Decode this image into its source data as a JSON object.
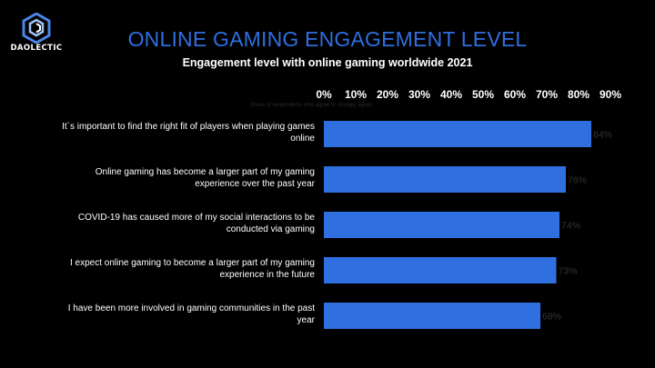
{
  "brand": {
    "name": "DAOLECTIC"
  },
  "header": {
    "title": "ONLINE GAMING ENGAGEMENT LEVEL",
    "subtitle": "Engagement level with online gaming worldwide 2021"
  },
  "colors": {
    "background": "#000000",
    "accent": "#2f6fe0",
    "bar": "#2f6fe0",
    "text": "#ffffff"
  },
  "chart_data": {
    "type": "bar",
    "orientation": "horizontal",
    "categories": [
      "It`s important to find the right fit of players when playing games online",
      "Online gaming has become a larger part of my gaming experience over the past year",
      "COVID-19 has caused more of my social interactions to be conducted via gaming",
      "I expect online gaming to become a larger part of my gaming experience in the future",
      "I have been more involved in gaming communities in the past year"
    ],
    "category_lines": [
      [
        "It`s important to find the right fit of players when playing games",
        "online"
      ],
      [
        "Online gaming has become a larger part of my gaming",
        "experience over the past year"
      ],
      [
        "COVID-19 has caused more of my social interactions to be",
        "conducted via gaming"
      ],
      [
        "I expect online gaming to become a larger part of my gaming",
        "experience in the future"
      ],
      [
        "I have been more involved in gaming communities in the past",
        "year"
      ]
    ],
    "values": [
      84,
      76,
      74,
      73,
      68
    ],
    "value_labels": [
      "84%",
      "76%",
      "74%",
      "73%",
      "68%"
    ],
    "ticks": [
      0,
      10,
      20,
      30,
      40,
      50,
      60,
      70,
      80,
      90
    ],
    "tick_labels": [
      "0%",
      "10%",
      "20%",
      "30%",
      "40%",
      "50%",
      "60%",
      "70%",
      "80%",
      "90%"
    ],
    "xlim": [
      0,
      90
    ],
    "axis_position": "top",
    "axis_note": "Share of respondents who agree or strongly agree",
    "grid": false,
    "legend": "none"
  }
}
